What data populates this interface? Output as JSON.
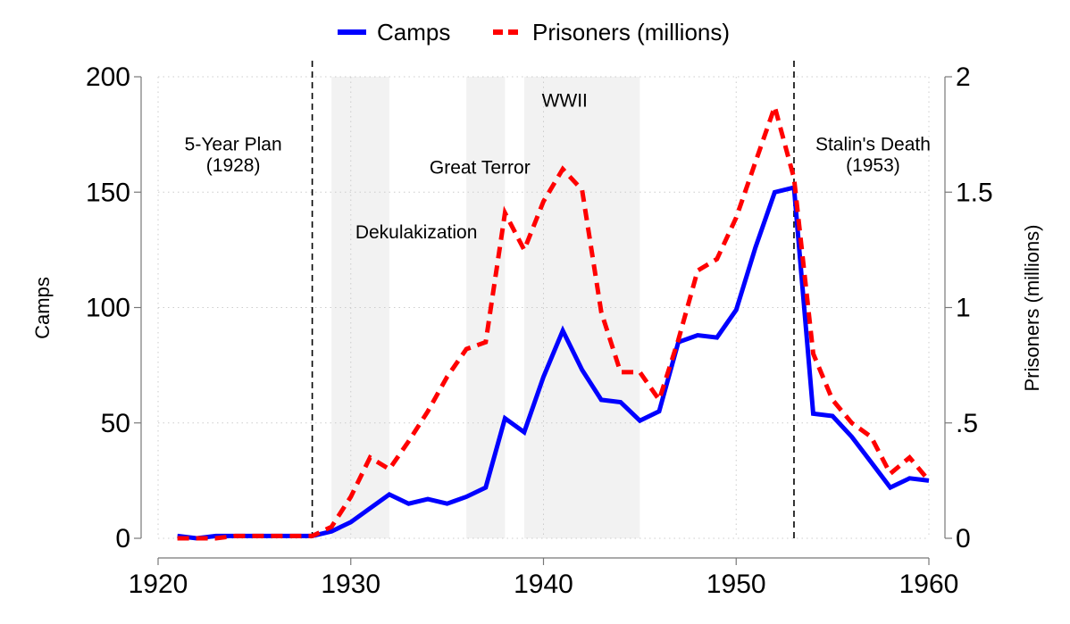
{
  "chart_data": {
    "type": "line",
    "title": "",
    "xlabel": "",
    "ylabel": "Camps",
    "y2label": "Prisoners (millions)",
    "xlim": [
      1920,
      1960
    ],
    "ylim": [
      0,
      200
    ],
    "y2lim": [
      0,
      2
    ],
    "x_ticks": [
      {
        "value": 1920,
        "label": "1920"
      },
      {
        "value": 1930,
        "label": "1930"
      },
      {
        "value": 1940,
        "label": "1940"
      },
      {
        "value": 1950,
        "label": "1950"
      },
      {
        "value": 1960,
        "label": "1960"
      }
    ],
    "y_ticks": [
      {
        "value": 0,
        "label": "0"
      },
      {
        "value": 50,
        "label": "50"
      },
      {
        "value": 100,
        "label": "100"
      },
      {
        "value": 150,
        "label": "150"
      },
      {
        "value": 200,
        "label": "200"
      }
    ],
    "y2_ticks": [
      {
        "value": 0,
        "label": "0"
      },
      {
        "value": 0.5,
        "label": ".5"
      },
      {
        "value": 1,
        "label": "1"
      },
      {
        "value": 1.5,
        "label": "1.5"
      },
      {
        "value": 2,
        "label": "2"
      }
    ],
    "grid": true,
    "legend_position": "top",
    "series": [
      {
        "name": "Camps",
        "axis": "left",
        "color": "#0000ff",
        "style": "solid",
        "x": [
          1921,
          1922,
          1923,
          1924,
          1925,
          1926,
          1927,
          1928,
          1929,
          1930,
          1931,
          1932,
          1933,
          1934,
          1935,
          1936,
          1937,
          1938,
          1939,
          1940,
          1941,
          1942,
          1943,
          1944,
          1945,
          1946,
          1947,
          1948,
          1949,
          1950,
          1951,
          1952,
          1953,
          1954,
          1955,
          1956,
          1957,
          1958,
          1959,
          1960
        ],
        "values": [
          1,
          0,
          1,
          1,
          1,
          1,
          1,
          1,
          3,
          7,
          13,
          19,
          15,
          17,
          15,
          18,
          22,
          52,
          46,
          70,
          90,
          73,
          60,
          59,
          51,
          55,
          85,
          88,
          87,
          99,
          126,
          150,
          152,
          54,
          53,
          44,
          33,
          22,
          26,
          25
        ]
      },
      {
        "name": "Prisoners (millions)",
        "axis": "right",
        "color": "#ff0000",
        "style": "dashed",
        "x": [
          1921,
          1922,
          1923,
          1924,
          1925,
          1926,
          1927,
          1928,
          1929,
          1930,
          1931,
          1932,
          1933,
          1934,
          1935,
          1936,
          1937,
          1938,
          1939,
          1940,
          1941,
          1942,
          1943,
          1944,
          1945,
          1946,
          1947,
          1948,
          1949,
          1950,
          1951,
          1952,
          1953,
          1954,
          1955,
          1956,
          1957,
          1958,
          1959,
          1960
        ],
        "values": [
          0,
          0,
          0,
          0.01,
          0.01,
          0.01,
          0.01,
          0.01,
          0.05,
          0.18,
          0.35,
          0.3,
          0.42,
          0.55,
          0.7,
          0.82,
          0.85,
          1.41,
          1.25,
          1.46,
          1.6,
          1.51,
          0.98,
          0.72,
          0.72,
          0.6,
          0.86,
          1.16,
          1.21,
          1.39,
          1.63,
          1.87,
          1.56,
          0.8,
          0.6,
          0.5,
          0.44,
          0.28,
          0.35,
          0.25
        ]
      }
    ],
    "shaded_periods": [
      {
        "name": "dekulakization",
        "start": 1929,
        "end": 1932,
        "label": "Dekulakization",
        "label_x": 1933.4,
        "label_y": 130
      },
      {
        "name": "great-terror",
        "start": 1936,
        "end": 1938,
        "label": "Great Terror",
        "label_x": 1936.7,
        "label_y": 158
      },
      {
        "name": "wwii",
        "start": 1939,
        "end": 1945,
        "label": "WWII",
        "label_x": 1941.1,
        "label_y": 187
      }
    ],
    "event_lines": [
      {
        "name": "five-year-plan",
        "x": 1928,
        "label_line1": "5-Year Plan",
        "label_line2": "(1928)",
        "label_x": 1923.9,
        "label_y1": 168,
        "label_y2": 159
      },
      {
        "name": "stalins-death",
        "x": 1953,
        "label_line1": "Stalin's Death",
        "label_line2": "(1953)",
        "label_x": 1957.1,
        "label_y1": 168,
        "label_y2": 159
      }
    ],
    "colors": {
      "camps": "#0000ff",
      "prisoners": "#ff0000",
      "shade": "#f2f2f2",
      "grid": "#cccccc",
      "axis": "#777777"
    }
  }
}
